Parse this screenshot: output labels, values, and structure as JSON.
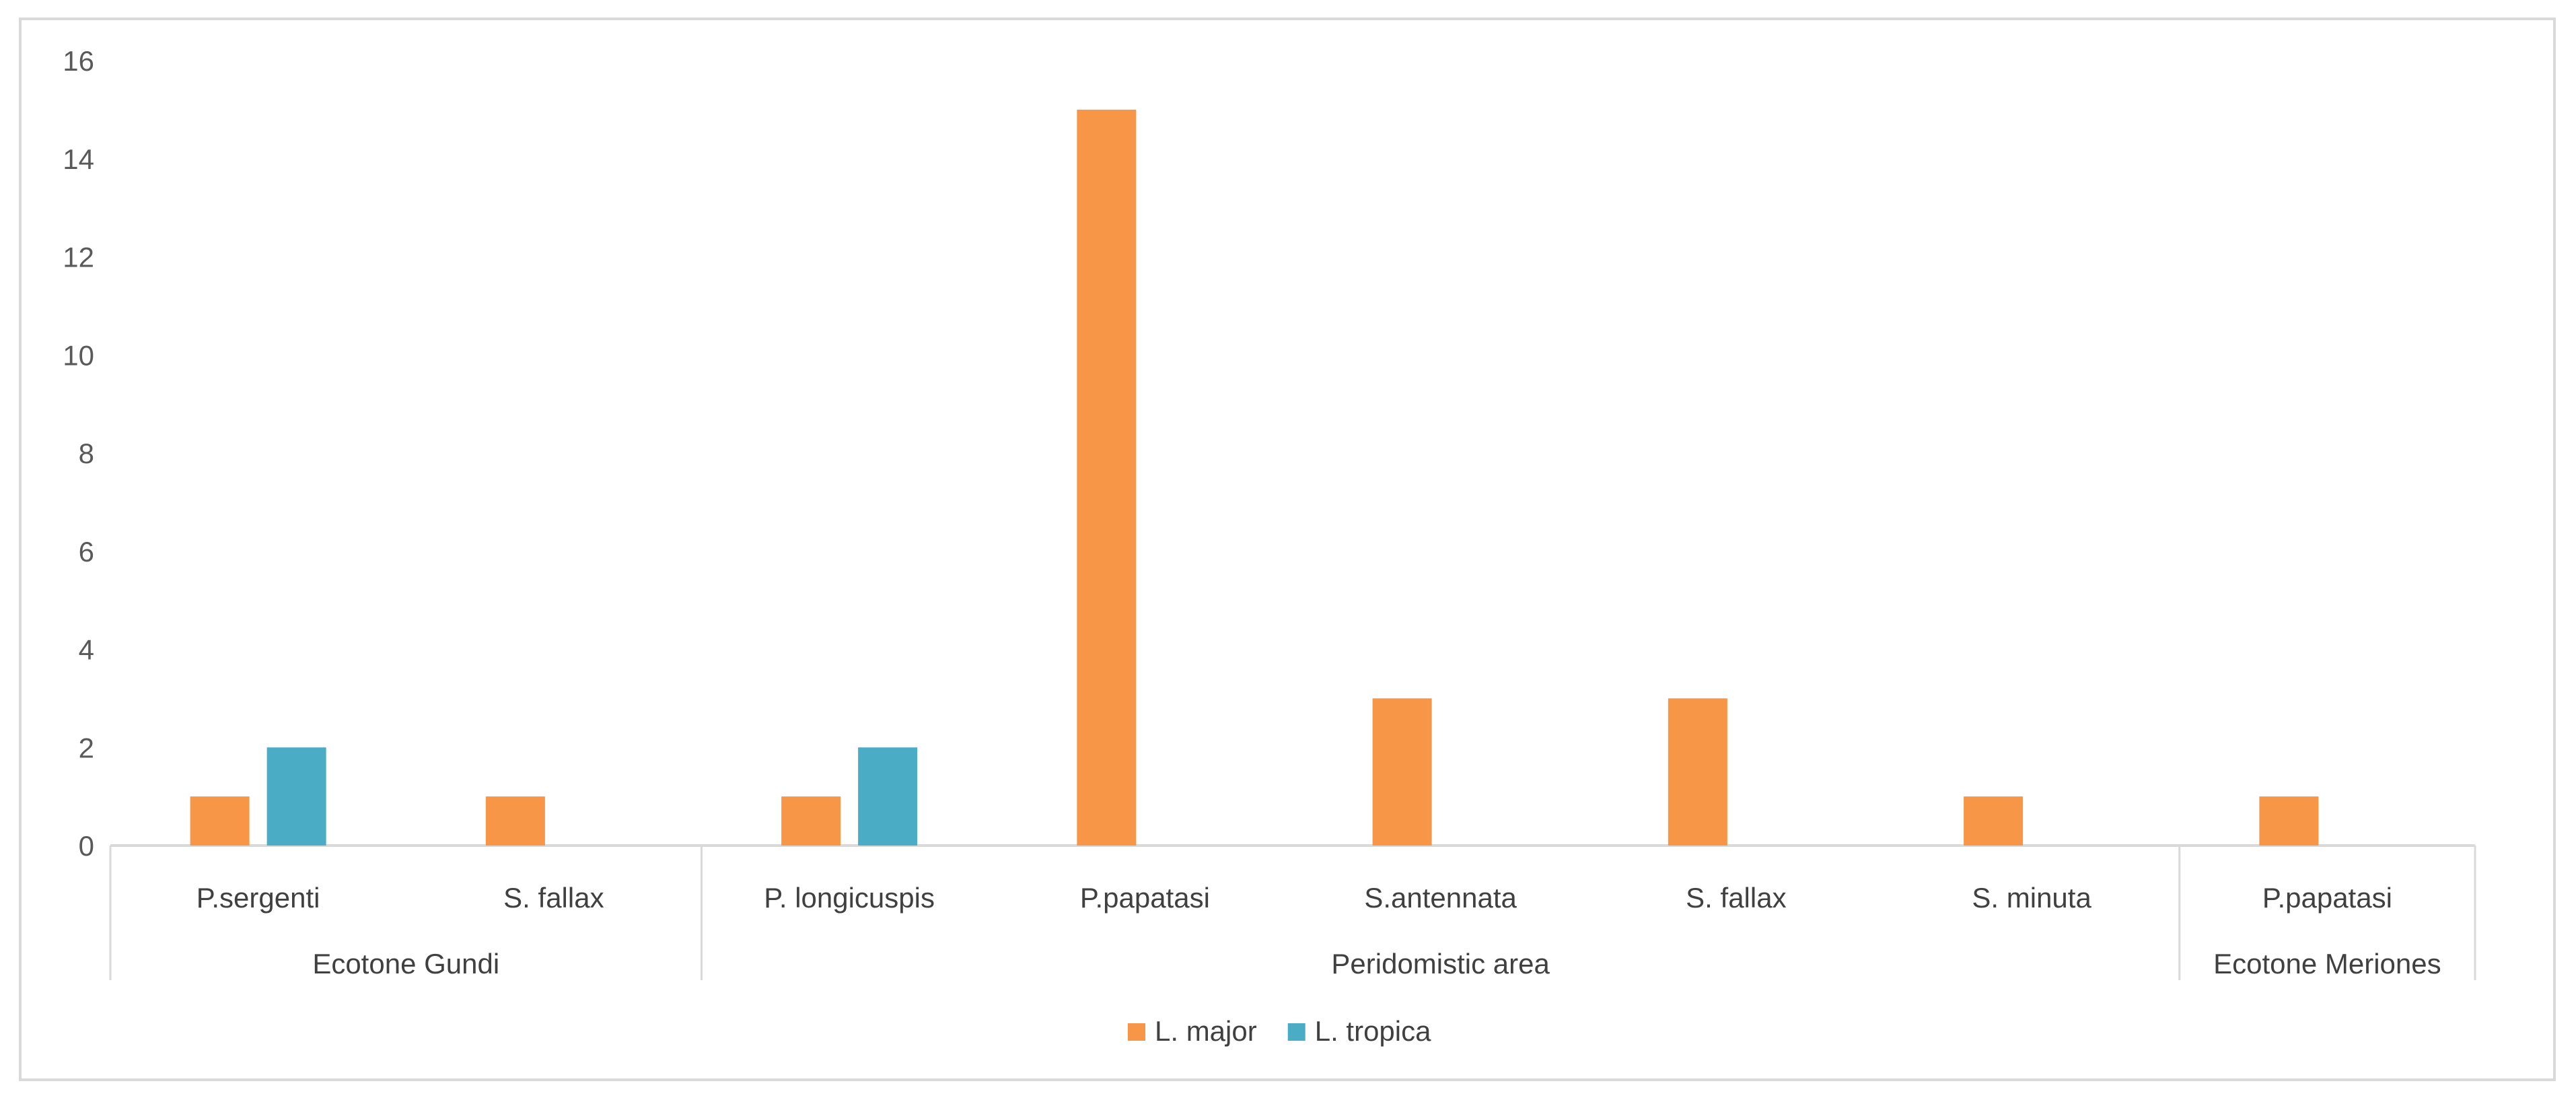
{
  "chart_data": {
    "type": "bar",
    "title": "",
    "xlabel": "",
    "ylabel": "",
    "ylim": [
      0,
      16
    ],
    "yticks": [
      0,
      2,
      4,
      6,
      8,
      10,
      12,
      14,
      16
    ],
    "grid": false,
    "legend_position": "bottom",
    "groups": [
      {
        "name": "Ecotone Gundi",
        "categories": [
          "P.sergenti",
          "S. fallax"
        ]
      },
      {
        "name": "Peridomistic area",
        "categories": [
          "P. longicuspis",
          "P.papatasi",
          "S.antennata",
          "S. fallax",
          "S. minuta"
        ]
      },
      {
        "name": "Ecotone Meriones",
        "categories": [
          "P.papatasi"
        ]
      }
    ],
    "categories": [
      "P.sergenti",
      "S. fallax",
      "P. longicuspis",
      "P.papatasi",
      "S.antennata",
      "S. fallax",
      "S. minuta",
      "P.papatasi"
    ],
    "series": [
      {
        "name": "L. major",
        "color": "#f79646",
        "values": [
          1,
          1,
          1,
          15,
          3,
          3,
          1,
          1
        ]
      },
      {
        "name": "L. tropica",
        "color": "#4bacc6",
        "values": [
          2,
          null,
          2,
          null,
          null,
          null,
          null,
          null
        ]
      }
    ]
  }
}
